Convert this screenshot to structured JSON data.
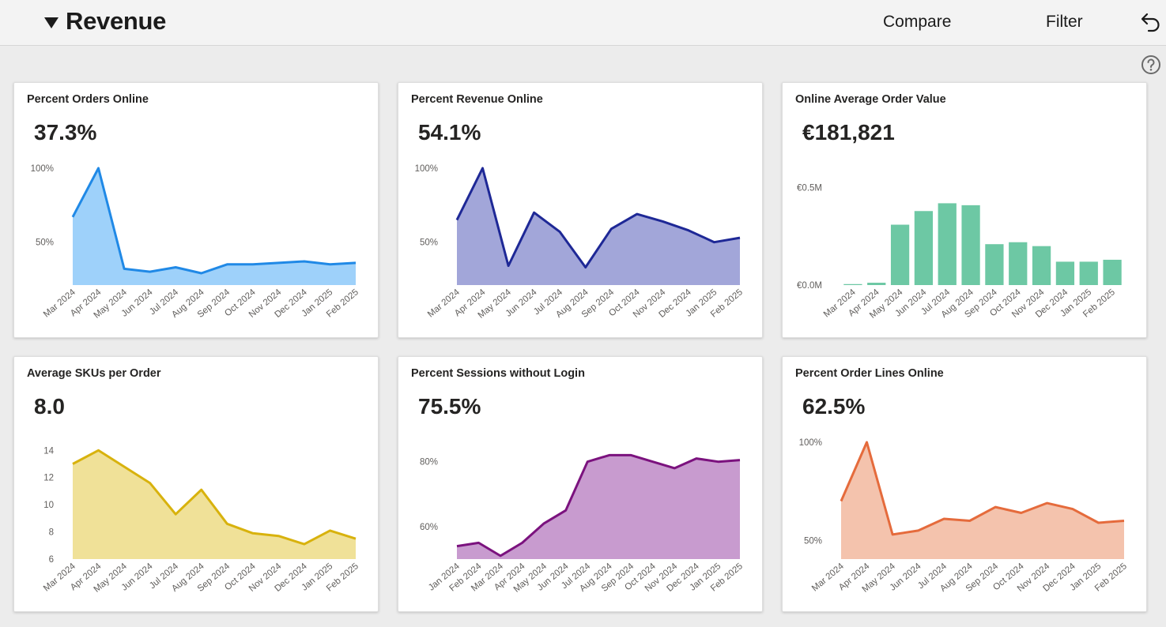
{
  "header": {
    "title": "Revenue",
    "compare_label": "Compare",
    "filter_label": "Filter"
  },
  "cards": [
    {
      "title": "Percent Orders Online",
      "kpi": "37.3%",
      "chart_data": {
        "type": "area",
        "x": [
          "Mar 2024",
          "Apr 2024",
          "May 2024",
          "Jun 2024",
          "Jul 2024",
          "Aug 2024",
          "Sep 2024",
          "Oct 2024",
          "Nov 2024",
          "Dec 2024",
          "Jan 2025",
          "Feb 2025"
        ],
        "values": [
          67,
          100,
          32,
          30,
          33,
          29,
          35,
          35,
          36,
          37,
          35,
          36
        ],
        "ylim": [
          21,
          100
        ],
        "yticks": [
          100,
          50
        ],
        "ytick_labels": [
          "100%",
          "50%"
        ],
        "color": "#2089e6",
        "fill": "#9ed1fa"
      }
    },
    {
      "title": "Percent Revenue Online",
      "kpi": "54.1%",
      "chart_data": {
        "type": "area",
        "x": [
          "Mar 2024",
          "Apr 2024",
          "May 2024",
          "Jun 2024",
          "Jul 2024",
          "Aug 2024",
          "Sep 2024",
          "Oct 2024",
          "Nov 2024",
          "Dec 2024",
          "Jan 2025",
          "Feb 2025"
        ],
        "values": [
          65,
          100,
          34,
          70,
          57,
          33,
          59,
          69,
          64,
          58,
          50,
          53
        ],
        "ylim": [
          21,
          100
        ],
        "yticks": [
          100,
          50
        ],
        "ytick_labels": [
          "100%",
          "50%"
        ],
        "color": "#1e2896",
        "fill": "#a2a6d9"
      }
    },
    {
      "title": "Online Average Order Value",
      "kpi": "€181,821",
      "chart_data": {
        "type": "bar",
        "categories": [
          "Mar 2024",
          "Apr 2024",
          "May 2024",
          "Jun 2024",
          "Jul 2024",
          "Aug 2024",
          "Sep 2024",
          "Oct 2024",
          "Nov 2024",
          "Dec 2024",
          "Jan 2025",
          "Feb 2025"
        ],
        "values": [
          0.005,
          0.012,
          0.31,
          0.38,
          0.42,
          0.41,
          0.21,
          0.22,
          0.2,
          0.12,
          0.12,
          0.13
        ],
        "ylim": [
          0,
          0.6
        ],
        "yticks": [
          0.5,
          0
        ],
        "ytick_labels": [
          "€0.5M",
          "€0.0M"
        ],
        "color": "#6dc8a4"
      }
    },
    {
      "title": "Average SKUs per Order",
      "kpi": "8.0",
      "chart_data": {
        "type": "area",
        "x": [
          "Mar 2024",
          "Apr 2024",
          "May 2024",
          "Jun 2024",
          "Jul 2024",
          "Aug 2024",
          "Sep 2024",
          "Oct 2024",
          "Nov 2024",
          "Dec 2024",
          "Jan 2025",
          "Feb 2025"
        ],
        "values": [
          13.0,
          14.0,
          12.8,
          11.6,
          9.3,
          11.1,
          8.6,
          7.9,
          7.7,
          7.1,
          8.1,
          7.5
        ],
        "ylim": [
          6,
          14.6
        ],
        "yticks": [
          14,
          12,
          10,
          8,
          6
        ],
        "ytick_labels": [
          "14",
          "12",
          "10",
          "8",
          "6"
        ],
        "color": "#d8b20d",
        "fill": "#f0e198"
      }
    },
    {
      "title": "Percent Sessions without Login",
      "kpi": "75.5%",
      "chart_data": {
        "type": "area",
        "x": [
          "Jan 2024",
          "Feb 2024",
          "Mar 2024",
          "Apr 2024",
          "May 2024",
          "Jun 2024",
          "Jul 2024",
          "Aug 2024",
          "Sep 2024",
          "Oct 2024",
          "Nov 2024",
          "Dec 2024",
          "Jan 2025",
          "Feb 2025"
        ],
        "values": [
          54,
          55,
          51,
          55,
          61,
          65,
          80,
          82,
          82,
          80,
          78,
          81,
          80,
          80.5
        ],
        "ylim": [
          50,
          86
        ],
        "yticks": [
          80,
          60
        ],
        "ytick_labels": [
          "80%",
          "60%"
        ],
        "color": "#7b127e",
        "fill": "#c89bcf"
      }
    },
    {
      "title": "Percent Order Lines Online",
      "kpi": "62.5%",
      "chart_data": {
        "type": "area",
        "x": [
          "Mar 2024",
          "Apr 2024",
          "May 2024",
          "Jun 2024",
          "Jul 2024",
          "Aug 2024",
          "Sep 2024",
          "Oct 2024",
          "Nov 2024",
          "Dec 2024",
          "Jan 2025",
          "Feb 2025"
        ],
        "values": [
          70,
          100,
          53,
          55,
          61,
          60,
          67,
          64,
          69,
          66,
          59,
          60
        ],
        "ylim": [
          40.5,
          100
        ],
        "yticks": [
          100,
          50
        ],
        "ytick_labels": [
          "100%",
          "50%"
        ],
        "color": "#e56b3c",
        "fill": "#f4c3ad"
      }
    }
  ]
}
